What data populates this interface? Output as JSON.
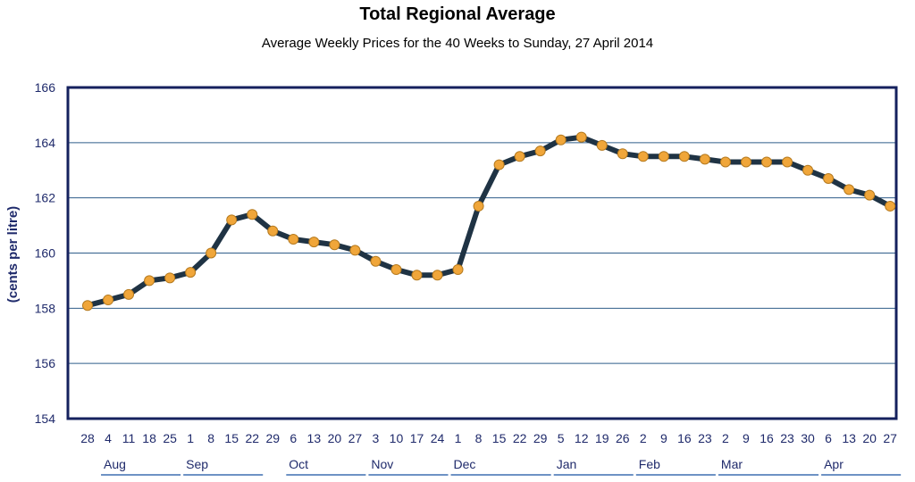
{
  "chart_data": {
    "type": "line",
    "title": "Total Regional Average",
    "subtitle": "Average Weekly Prices for the 40 Weeks to Sunday, 27 April 2014",
    "ylabel": "(cents per litre)",
    "xlabel": "",
    "ylim": [
      154,
      166
    ],
    "yticks": [
      154,
      156,
      158,
      160,
      162,
      164,
      166
    ],
    "grid": true,
    "categories": [
      "28",
      "4",
      "11",
      "18",
      "25",
      "1",
      "8",
      "15",
      "22",
      "29",
      "6",
      "13",
      "20",
      "27",
      "3",
      "10",
      "17",
      "24",
      "1",
      "8",
      "15",
      "22",
      "29",
      "5",
      "12",
      "19",
      "26",
      "2",
      "9",
      "16",
      "23",
      "2",
      "9",
      "16",
      "23",
      "30",
      "6",
      "13",
      "20",
      "27"
    ],
    "month_groups": [
      {
        "label": "Aug",
        "start": 1,
        "count": 4
      },
      {
        "label": "Sep",
        "start": 5,
        "count": 4
      },
      {
        "label": "Oct",
        "start": 10,
        "count": 4
      },
      {
        "label": "Nov",
        "start": 14,
        "count": 4
      },
      {
        "label": "Dec",
        "start": 18,
        "count": 5
      },
      {
        "label": "Jan",
        "start": 23,
        "count": 4
      },
      {
        "label": "Feb",
        "start": 27,
        "count": 4
      },
      {
        "label": "Mar",
        "start": 31,
        "count": 5
      },
      {
        "label": "Apr",
        "start": 36,
        "count": 4
      }
    ],
    "series": [
      {
        "values": [
          158.1,
          158.3,
          158.5,
          159.0,
          159.1,
          159.3,
          160.0,
          161.2,
          161.4,
          160.8,
          160.5,
          160.4,
          160.3,
          160.1,
          159.7,
          159.4,
          159.2,
          159.2,
          159.4,
          161.7,
          163.2,
          163.5,
          163.7,
          164.1,
          164.2,
          163.9,
          163.6,
          163.5,
          163.5,
          163.5,
          163.4,
          163.3,
          163.3,
          163.3,
          163.3,
          163.0,
          162.7,
          162.3,
          162.1,
          161.7
        ]
      }
    ],
    "colors": {
      "line": "#1f3344",
      "marker_fill": "#f0a63a",
      "marker_stroke": "#b57a1f",
      "frame": "#15215e",
      "grid": "#2f5d8a",
      "text": "#1f2a6b",
      "month_underline": "#3f6fb0"
    }
  }
}
